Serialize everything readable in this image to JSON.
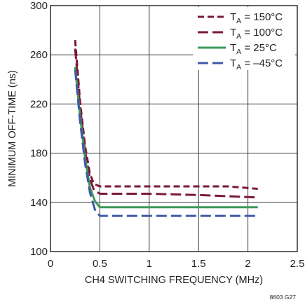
{
  "chart_data": {
    "type": "line",
    "title": "",
    "xlabel": "CH4 SWITCHING FREQUENCY (MHz)",
    "ylabel": "MINIMUM OFF-TIME (ns)",
    "xlim": [
      0,
      2.5
    ],
    "ylim": [
      100,
      300
    ],
    "xticks": [
      0,
      0.5,
      1,
      1.5,
      2,
      2.5
    ],
    "xtick_labels": [
      "0",
      "0.5",
      "1",
      "1.5",
      "2",
      "2.5"
    ],
    "yticks": [
      100,
      140,
      180,
      220,
      260,
      300
    ],
    "ytick_labels": [
      "100",
      "140",
      "180",
      "220",
      "260",
      "300"
    ],
    "grid": true,
    "legend_position": "top-right",
    "figure_id": "8603 G27",
    "series": [
      {
        "name_main": "T",
        "name_sub": "A",
        "name_rest": " = 150°C",
        "color": "#7a1a34",
        "dash": "dashed",
        "x": [
          0.25,
          0.3,
          0.35,
          0.4,
          0.44,
          0.5,
          1.0,
          1.5,
          1.8,
          2.1
        ],
        "y": [
          272,
          222,
          186,
          163,
          155,
          153,
          153,
          153,
          153,
          151
        ]
      },
      {
        "name_main": "T",
        "name_sub": "A",
        "name_rest": " = 100°C",
        "color": "#7a1a34",
        "dash": "long-dashed",
        "x": [
          0.25,
          0.3,
          0.35,
          0.4,
          0.44,
          0.5,
          1.0,
          1.5,
          2.1
        ],
        "y": [
          265,
          218,
          182,
          159,
          150,
          147,
          147,
          146,
          144
        ]
      },
      {
        "name_main": "T",
        "name_sub": "A",
        "name_rest": " = 25°C",
        "color": "#3f9a5a",
        "dash": "solid",
        "x": [
          0.25,
          0.3,
          0.35,
          0.4,
          0.45,
          0.5,
          1.0,
          1.5,
          2.1
        ],
        "y": [
          250,
          210,
          176,
          152,
          141,
          136,
          136,
          136,
          136
        ]
      },
      {
        "name_main": "T",
        "name_sub": "A",
        "name_rest": " = –45°C",
        "color": "#3c5aa6",
        "dash": "long-dashed",
        "x": [
          0.25,
          0.3,
          0.35,
          0.4,
          0.45,
          0.5,
          1.0,
          1.5,
          2.1
        ],
        "y": [
          248,
          206,
          172,
          148,
          134,
          129,
          129,
          129,
          129
        ]
      }
    ]
  }
}
